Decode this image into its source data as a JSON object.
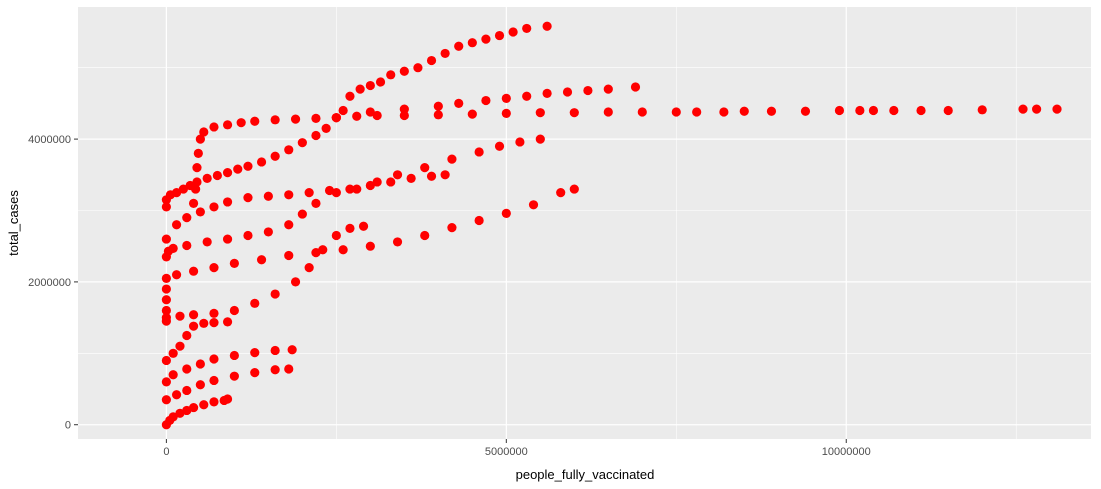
{
  "chart_data": {
    "type": "scatter",
    "xlabel": "people_fully_vaccinated",
    "ylabel": "total_cases",
    "xlim": [
      -1300000,
      13600000
    ],
    "ylim": [
      -200000,
      5850000
    ],
    "x_ticks": [
      0,
      5000000,
      10000000
    ],
    "x_tick_labels": [
      "0",
      "5000000",
      "10000000"
    ],
    "y_ticks": [
      0,
      2000000,
      4000000
    ],
    "y_tick_labels": [
      "0",
      "2000000",
      "4000000"
    ],
    "grid": true,
    "legend": "none",
    "colors": {
      "point": "#ff0000",
      "panel": "#ebebeb",
      "grid": "#ffffff",
      "tick_text": "#4d4d4d"
    },
    "series": [
      {
        "points": [
          [
            0,
            3050000
          ],
          [
            0,
            3150000
          ],
          [
            60000,
            3220000
          ],
          [
            150000,
            3250000
          ],
          [
            250000,
            3300000
          ],
          [
            350000,
            3350000
          ],
          [
            450000,
            3400000
          ],
          [
            600000,
            3450000
          ],
          [
            750000,
            3490000
          ],
          [
            900000,
            3530000
          ],
          [
            1050000,
            3580000
          ],
          [
            1200000,
            3620000
          ],
          [
            1400000,
            3680000
          ],
          [
            1600000,
            3760000
          ],
          [
            1800000,
            3850000
          ],
          [
            2000000,
            3950000
          ],
          [
            2200000,
            4050000
          ],
          [
            2350000,
            4150000
          ],
          [
            2500000,
            4300000
          ],
          [
            2600000,
            4400000
          ],
          [
            2700000,
            4600000
          ],
          [
            2850000,
            4700000
          ],
          [
            3000000,
            4750000
          ],
          [
            3150000,
            4800000
          ],
          [
            3300000,
            4900000
          ],
          [
            3500000,
            4950000
          ],
          [
            3700000,
            5000000
          ],
          [
            3900000,
            5100000
          ],
          [
            4100000,
            5200000
          ],
          [
            4300000,
            5300000
          ],
          [
            4500000,
            5350000
          ],
          [
            4700000,
            5400000
          ],
          [
            4900000,
            5450000
          ],
          [
            5100000,
            5500000
          ],
          [
            5300000,
            5550000
          ],
          [
            5600000,
            5580000
          ]
        ]
      },
      {
        "points": [
          [
            400000,
            3100000
          ],
          [
            430000,
            3300000
          ],
          [
            450000,
            3600000
          ],
          [
            470000,
            3800000
          ],
          [
            500000,
            4000000
          ],
          [
            550000,
            4100000
          ],
          [
            700000,
            4170000
          ],
          [
            900000,
            4200000
          ],
          [
            1100000,
            4230000
          ],
          [
            1300000,
            4250000
          ],
          [
            1600000,
            4270000
          ],
          [
            1900000,
            4280000
          ],
          [
            2200000,
            4290000
          ],
          [
            2500000,
            4300000
          ],
          [
            2800000,
            4320000
          ],
          [
            3100000,
            4330000
          ],
          [
            3500000,
            4330000
          ],
          [
            4000000,
            4340000
          ],
          [
            4500000,
            4350000
          ],
          [
            5000000,
            4360000
          ],
          [
            5500000,
            4370000
          ],
          [
            6000000,
            4370000
          ],
          [
            6500000,
            4380000
          ],
          [
            7000000,
            4380000
          ],
          [
            7500000,
            4380000
          ],
          [
            7800000,
            4380000
          ],
          [
            8200000,
            4380000
          ],
          [
            8500000,
            4390000
          ],
          [
            8900000,
            4390000
          ],
          [
            9400000,
            4390000
          ],
          [
            9900000,
            4400000
          ],
          [
            10200000,
            4400000
          ],
          [
            10400000,
            4400000
          ],
          [
            10700000,
            4400000
          ],
          [
            11100000,
            4400000
          ],
          [
            11500000,
            4400000
          ],
          [
            12000000,
            4410000
          ],
          [
            12600000,
            4420000
          ],
          [
            12800000,
            4420000
          ],
          [
            13100000,
            4420000
          ]
        ]
      },
      {
        "points": [
          [
            2500000,
            4300000
          ],
          [
            3000000,
            4380000
          ],
          [
            3500000,
            4420000
          ],
          [
            4000000,
            4460000
          ],
          [
            4300000,
            4500000
          ],
          [
            4700000,
            4540000
          ],
          [
            5000000,
            4570000
          ],
          [
            5300000,
            4600000
          ],
          [
            5600000,
            4640000
          ],
          [
            5900000,
            4660000
          ],
          [
            6200000,
            4680000
          ],
          [
            6500000,
            4700000
          ],
          [
            6900000,
            4730000
          ]
        ]
      },
      {
        "points": [
          [
            0,
            2350000
          ],
          [
            30000,
            2430000
          ],
          [
            100000,
            2470000
          ],
          [
            300000,
            2510000
          ],
          [
            600000,
            2560000
          ],
          [
            900000,
            2600000
          ],
          [
            1200000,
            2650000
          ],
          [
            1500000,
            2700000
          ],
          [
            1800000,
            2800000
          ],
          [
            2000000,
            2950000
          ],
          [
            2200000,
            3100000
          ],
          [
            2500000,
            3250000
          ],
          [
            2800000,
            3300000
          ],
          [
            3100000,
            3400000
          ],
          [
            3400000,
            3500000
          ],
          [
            3800000,
            3600000
          ],
          [
            4200000,
            3720000
          ],
          [
            4600000,
            3820000
          ],
          [
            4900000,
            3900000
          ],
          [
            5200000,
            3960000
          ],
          [
            5500000,
            4000000
          ]
        ]
      },
      {
        "points": [
          [
            0,
            2600000
          ],
          [
            150000,
            2800000
          ],
          [
            300000,
            2900000
          ],
          [
            500000,
            2980000
          ],
          [
            700000,
            3050000
          ],
          [
            900000,
            3120000
          ],
          [
            1200000,
            3180000
          ],
          [
            1500000,
            3200000
          ],
          [
            1800000,
            3220000
          ],
          [
            2100000,
            3250000
          ],
          [
            2400000,
            3280000
          ],
          [
            2700000,
            3300000
          ],
          [
            3000000,
            3350000
          ],
          [
            3300000,
            3400000
          ],
          [
            3600000,
            3450000
          ],
          [
            3900000,
            3480000
          ],
          [
            4100000,
            3500000
          ]
        ]
      },
      {
        "points": [
          [
            0,
            1450000
          ],
          [
            0,
            1600000
          ],
          [
            0,
            1750000
          ],
          [
            0,
            1900000
          ],
          [
            0,
            2050000
          ],
          [
            150000,
            2100000
          ],
          [
            400000,
            2150000
          ],
          [
            700000,
            2200000
          ],
          [
            1000000,
            2260000
          ],
          [
            1400000,
            2310000
          ],
          [
            1800000,
            2370000
          ],
          [
            2200000,
            2410000
          ],
          [
            2600000,
            2450000
          ],
          [
            3000000,
            2500000
          ],
          [
            3400000,
            2560000
          ],
          [
            3800000,
            2650000
          ],
          [
            4200000,
            2760000
          ],
          [
            4600000,
            2860000
          ],
          [
            5000000,
            2960000
          ],
          [
            5400000,
            3080000
          ],
          [
            5800000,
            3250000
          ],
          [
            6000000,
            3300000
          ]
        ]
      },
      {
        "points": [
          [
            0,
            1500000
          ],
          [
            200000,
            1520000
          ],
          [
            400000,
            1540000
          ],
          [
            700000,
            1560000
          ],
          [
            1000000,
            1600000
          ],
          [
            1300000,
            1700000
          ],
          [
            1600000,
            1830000
          ],
          [
            1900000,
            2000000
          ],
          [
            2100000,
            2200000
          ],
          [
            2300000,
            2450000
          ],
          [
            2500000,
            2650000
          ],
          [
            2700000,
            2750000
          ],
          [
            2900000,
            2780000
          ]
        ]
      },
      {
        "points": [
          [
            0,
            900000
          ],
          [
            100000,
            1000000
          ],
          [
            200000,
            1100000
          ],
          [
            300000,
            1250000
          ],
          [
            400000,
            1380000
          ],
          [
            550000,
            1420000
          ],
          [
            700000,
            1430000
          ],
          [
            900000,
            1440000
          ]
        ]
      },
      {
        "points": [
          [
            0,
            600000
          ],
          [
            100000,
            700000
          ],
          [
            300000,
            780000
          ],
          [
            500000,
            850000
          ],
          [
            700000,
            920000
          ],
          [
            1000000,
            970000
          ],
          [
            1300000,
            1010000
          ],
          [
            1600000,
            1040000
          ],
          [
            1850000,
            1050000
          ]
        ]
      },
      {
        "points": [
          [
            0,
            350000
          ],
          [
            150000,
            420000
          ],
          [
            300000,
            480000
          ],
          [
            500000,
            560000
          ],
          [
            700000,
            620000
          ],
          [
            1000000,
            680000
          ],
          [
            1300000,
            730000
          ],
          [
            1600000,
            770000
          ],
          [
            1800000,
            780000
          ]
        ]
      },
      {
        "points": [
          [
            0,
            0
          ],
          [
            50000,
            60000
          ],
          [
            100000,
            110000
          ],
          [
            200000,
            160000
          ],
          [
            300000,
            200000
          ],
          [
            400000,
            240000
          ],
          [
            550000,
            280000
          ],
          [
            700000,
            320000
          ],
          [
            850000,
            340000
          ],
          [
            900000,
            360000
          ]
        ]
      }
    ]
  }
}
